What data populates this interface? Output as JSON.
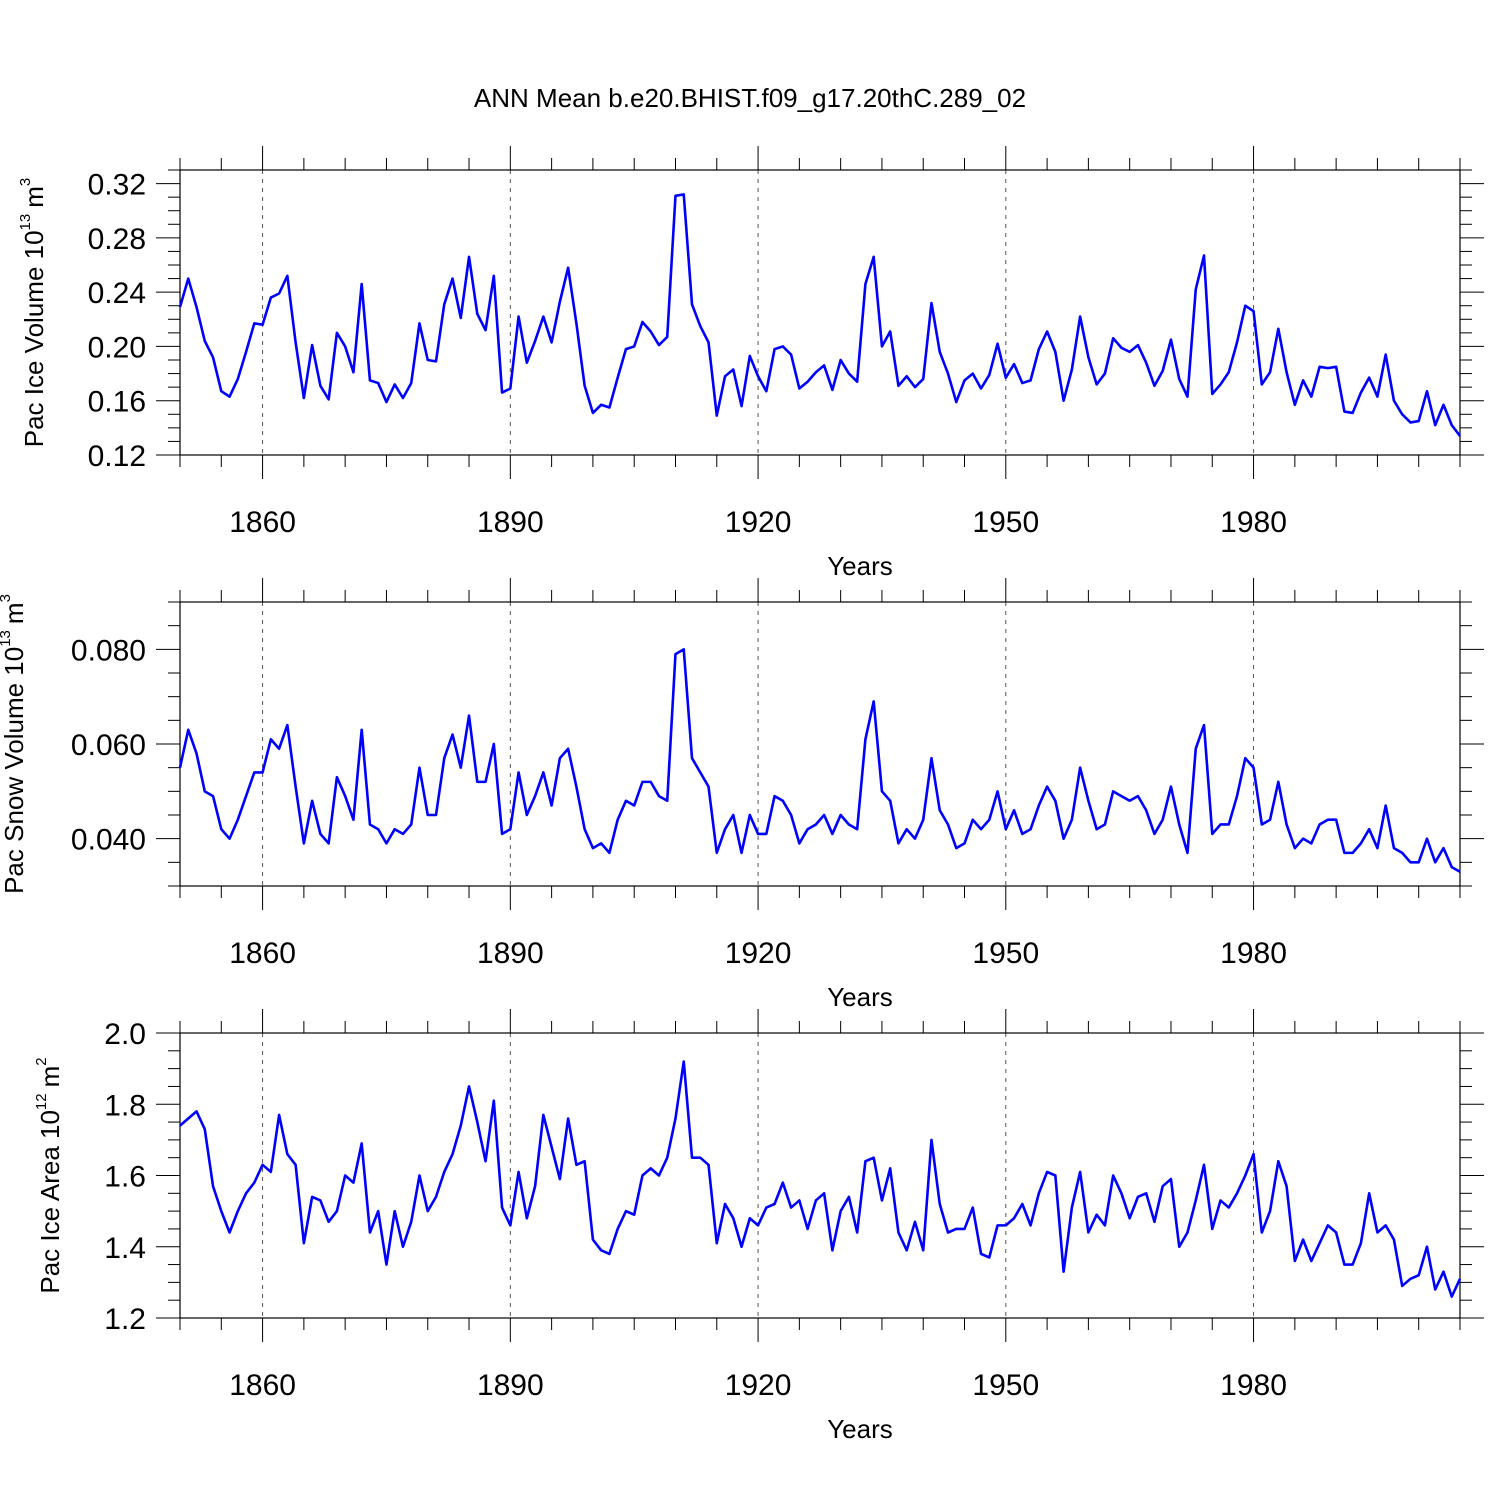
{
  "chart_data": [
    {
      "type": "line",
      "title": "ANN Mean b.e20.BHIST.f09_g17.20thC.289_02",
      "xlabel": "Years",
      "ylabel": {
        "text": "Pac Ice Volume 10",
        "exp": "13",
        "unit": "m",
        "unit_exp": "3"
      },
      "xlim": [
        1850,
        2005
      ],
      "x_ticks": [
        1860,
        1890,
        1920,
        1950,
        1980
      ],
      "x_tick_labels": [
        "1860",
        "1890",
        "1920",
        "1950",
        "1980"
      ],
      "ylim": [
        0.12,
        0.33
      ],
      "y_ticks": [
        0.12,
        0.16,
        0.2,
        0.24,
        0.28,
        0.32
      ],
      "y_tick_labels": [
        "0.12",
        "0.16",
        "0.20",
        "0.24",
        "0.28",
        "0.32"
      ],
      "grid": "dashed vertical at major x ticks",
      "series": [
        {
          "name": "Pac Ice Volume",
          "color": "#0000ff",
          "x_start": 1850,
          "values": [
            0.229,
            0.25,
            0.229,
            0.204,
            0.192,
            0.167,
            0.163,
            0.176,
            0.196,
            0.217,
            0.216,
            0.236,
            0.239,
            0.252,
            0.203,
            0.162,
            0.201,
            0.171,
            0.161,
            0.21,
            0.2,
            0.181,
            0.246,
            0.175,
            0.173,
            0.159,
            0.172,
            0.162,
            0.173,
            0.217,
            0.19,
            0.189,
            0.231,
            0.25,
            0.221,
            0.266,
            0.224,
            0.212,
            0.252,
            0.166,
            0.169,
            0.222,
            0.188,
            0.204,
            0.222,
            0.203,
            0.233,
            0.258,
            0.217,
            0.171,
            0.151,
            0.157,
            0.155,
            0.177,
            0.198,
            0.2,
            0.218,
            0.211,
            0.201,
            0.207,
            0.311,
            0.312,
            0.231,
            0.215,
            0.203,
            0.149,
            0.178,
            0.183,
            0.156,
            0.193,
            0.178,
            0.167,
            0.198,
            0.2,
            0.194,
            0.169,
            0.174,
            0.181,
            0.186,
            0.168,
            0.19,
            0.18,
            0.174,
            0.246,
            0.266,
            0.2,
            0.211,
            0.171,
            0.178,
            0.17,
            0.176,
            0.232,
            0.196,
            0.18,
            0.159,
            0.175,
            0.18,
            0.169,
            0.179,
            0.202,
            0.177,
            0.187,
            0.173,
            0.175,
            0.198,
            0.211,
            0.196,
            0.16,
            0.183,
            0.222,
            0.192,
            0.172,
            0.18,
            0.206,
            0.199,
            0.196,
            0.201,
            0.188,
            0.171,
            0.182,
            0.205,
            0.176,
            0.163,
            0.242,
            0.267,
            0.165,
            0.172,
            0.181,
            0.203,
            0.23,
            0.226,
            0.172,
            0.181,
            0.213,
            0.181,
            0.157,
            0.175,
            0.163,
            0.185,
            0.184,
            0.185,
            0.152,
            0.151,
            0.166,
            0.177,
            0.163,
            0.194,
            0.16,
            0.15,
            0.144,
            0.145,
            0.167,
            0.142,
            0.157,
            0.142,
            0.134
          ]
        }
      ]
    },
    {
      "type": "line",
      "xlabel": "Years",
      "ylabel": {
        "text": "Pac Snow Volume 10",
        "exp": "13",
        "unit": "m",
        "unit_exp": "3"
      },
      "xlim": [
        1850,
        2005
      ],
      "x_ticks": [
        1860,
        1890,
        1920,
        1950,
        1980
      ],
      "x_tick_labels": [
        "1860",
        "1890",
        "1920",
        "1950",
        "1980"
      ],
      "ylim": [
        0.03,
        0.09
      ],
      "y_ticks": [
        0.04,
        0.06,
        0.08
      ],
      "y_tick_labels": [
        "0.040",
        "0.060",
        "0.080"
      ],
      "grid": "dashed vertical at major x ticks",
      "series": [
        {
          "name": "Pac Snow Volume",
          "color": "#0000ff",
          "x_start": 1850,
          "values": [
            0.055,
            0.063,
            0.058,
            0.05,
            0.049,
            0.042,
            0.04,
            0.044,
            0.049,
            0.054,
            0.054,
            0.061,
            0.059,
            0.064,
            0.051,
            0.039,
            0.048,
            0.041,
            0.039,
            0.053,
            0.049,
            0.044,
            0.063,
            0.043,
            0.042,
            0.039,
            0.042,
            0.041,
            0.043,
            0.055,
            0.045,
            0.045,
            0.057,
            0.062,
            0.055,
            0.066,
            0.052,
            0.052,
            0.06,
            0.041,
            0.042,
            0.054,
            0.045,
            0.049,
            0.054,
            0.047,
            0.057,
            0.059,
            0.051,
            0.042,
            0.038,
            0.039,
            0.037,
            0.044,
            0.048,
            0.047,
            0.052,
            0.052,
            0.049,
            0.048,
            0.079,
            0.08,
            0.057,
            0.054,
            0.051,
            0.037,
            0.042,
            0.045,
            0.037,
            0.045,
            0.041,
            0.041,
            0.049,
            0.048,
            0.045,
            0.039,
            0.042,
            0.043,
            0.045,
            0.041,
            0.045,
            0.043,
            0.042,
            0.061,
            0.069,
            0.05,
            0.048,
            0.039,
            0.042,
            0.04,
            0.044,
            0.057,
            0.046,
            0.043,
            0.038,
            0.039,
            0.044,
            0.042,
            0.044,
            0.05,
            0.042,
            0.046,
            0.041,
            0.042,
            0.047,
            0.051,
            0.048,
            0.04,
            0.044,
            0.055,
            0.048,
            0.042,
            0.043,
            0.05,
            0.049,
            0.048,
            0.049,
            0.046,
            0.041,
            0.044,
            0.051,
            0.043,
            0.037,
            0.059,
            0.064,
            0.041,
            0.043,
            0.043,
            0.049,
            0.057,
            0.055,
            0.043,
            0.044,
            0.052,
            0.043,
            0.038,
            0.04,
            0.039,
            0.043,
            0.044,
            0.044,
            0.037,
            0.037,
            0.039,
            0.042,
            0.038,
            0.047,
            0.038,
            0.037,
            0.035,
            0.035,
            0.04,
            0.035,
            0.038,
            0.034,
            0.033
          ]
        }
      ]
    },
    {
      "type": "line",
      "xlabel": "Years",
      "ylabel": {
        "text": "Pac Ice Area 10",
        "exp": "12",
        "unit": "m",
        "unit_exp": "2"
      },
      "xlim": [
        1850,
        2005
      ],
      "x_ticks": [
        1860,
        1890,
        1920,
        1950,
        1980
      ],
      "x_tick_labels": [
        "1860",
        "1890",
        "1920",
        "1950",
        "1980"
      ],
      "ylim": [
        1.2,
        2.0
      ],
      "y_ticks": [
        1.2,
        1.4,
        1.6,
        1.8,
        2.0
      ],
      "y_tick_labels": [
        "1.2",
        "1.4",
        "1.6",
        "1.8",
        "2.0"
      ],
      "grid": "dashed vertical at major x ticks",
      "series": [
        {
          "name": "Pac Ice Area",
          "color": "#0000ff",
          "x_start": 1850,
          "values": [
            1.74,
            1.76,
            1.78,
            1.73,
            1.57,
            1.5,
            1.44,
            1.5,
            1.55,
            1.58,
            1.63,
            1.61,
            1.77,
            1.66,
            1.63,
            1.41,
            1.54,
            1.53,
            1.47,
            1.5,
            1.6,
            1.58,
            1.69,
            1.44,
            1.5,
            1.35,
            1.5,
            1.4,
            1.47,
            1.6,
            1.5,
            1.54,
            1.61,
            1.66,
            1.74,
            1.85,
            1.75,
            1.64,
            1.81,
            1.51,
            1.46,
            1.61,
            1.48,
            1.57,
            1.77,
            1.68,
            1.59,
            1.76,
            1.63,
            1.64,
            1.42,
            1.39,
            1.38,
            1.45,
            1.5,
            1.49,
            1.6,
            1.62,
            1.6,
            1.65,
            1.76,
            1.92,
            1.65,
            1.65,
            1.63,
            1.41,
            1.52,
            1.48,
            1.4,
            1.48,
            1.46,
            1.51,
            1.52,
            1.58,
            1.51,
            1.53,
            1.45,
            1.53,
            1.55,
            1.39,
            1.5,
            1.54,
            1.44,
            1.64,
            1.65,
            1.53,
            1.62,
            1.44,
            1.39,
            1.47,
            1.39,
            1.7,
            1.52,
            1.44,
            1.45,
            1.45,
            1.51,
            1.38,
            1.37,
            1.46,
            1.46,
            1.48,
            1.52,
            1.46,
            1.55,
            1.61,
            1.6,
            1.33,
            1.51,
            1.61,
            1.44,
            1.49,
            1.46,
            1.6,
            1.55,
            1.48,
            1.54,
            1.55,
            1.47,
            1.57,
            1.59,
            1.4,
            1.44,
            1.53,
            1.63,
            1.45,
            1.53,
            1.51,
            1.55,
            1.6,
            1.66,
            1.44,
            1.5,
            1.64,
            1.57,
            1.36,
            1.42,
            1.36,
            1.41,
            1.46,
            1.44,
            1.35,
            1.35,
            1.41,
            1.55,
            1.44,
            1.46,
            1.42,
            1.29,
            1.31,
            1.32,
            1.4,
            1.28,
            1.33,
            1.26,
            1.31
          ]
        }
      ]
    }
  ]
}
